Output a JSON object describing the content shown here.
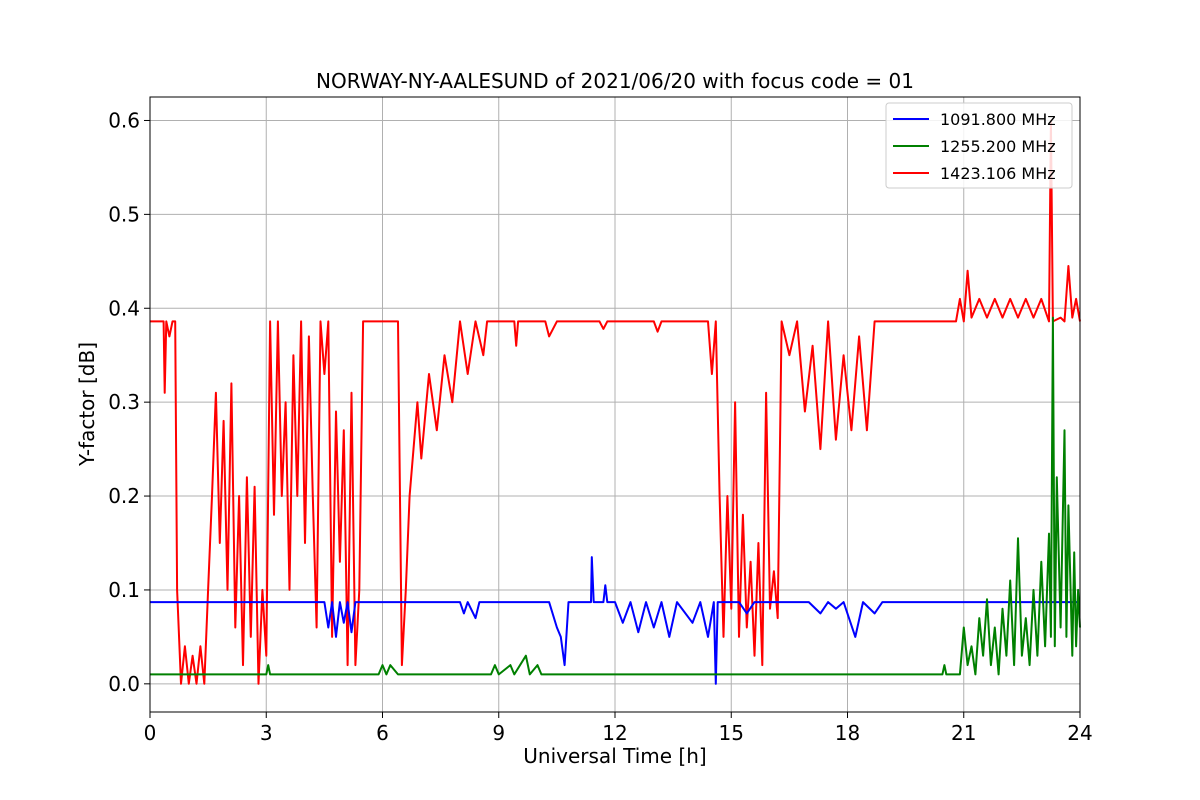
{
  "chart_data": {
    "type": "line",
    "title": "NORWAY-NY-AALESUND of 2021/06/20 with focus code = 01",
    "xlabel": "Universal Time [h]",
    "ylabel": "Y-factor [dB]",
    "xlim": [
      0,
      24
    ],
    "ylim": [
      -0.03,
      0.625
    ],
    "x_ticks": [
      0,
      3,
      6,
      9,
      12,
      15,
      18,
      21,
      24
    ],
    "y_ticks": [
      0.0,
      0.1,
      0.2,
      0.3,
      0.4,
      0.5,
      0.6
    ],
    "grid": true,
    "legend_position": "top-right",
    "series": [
      {
        "name": "1091.800 MHz",
        "color": "#0000ff",
        "baseline": 0.087,
        "points": [
          [
            0,
            0.087
          ],
          [
            4.5,
            0.087
          ],
          [
            4.6,
            0.06
          ],
          [
            4.7,
            0.087
          ],
          [
            4.8,
            0.05
          ],
          [
            4.9,
            0.087
          ],
          [
            5.0,
            0.065
          ],
          [
            5.1,
            0.087
          ],
          [
            5.2,
            0.055
          ],
          [
            5.3,
            0.087
          ],
          [
            8.0,
            0.087
          ],
          [
            8.1,
            0.075
          ],
          [
            8.2,
            0.087
          ],
          [
            8.4,
            0.07
          ],
          [
            8.5,
            0.087
          ],
          [
            10.3,
            0.087
          ],
          [
            10.5,
            0.06
          ],
          [
            10.6,
            0.05
          ],
          [
            10.7,
            0.02
          ],
          [
            10.8,
            0.087
          ],
          [
            11.38,
            0.087
          ],
          [
            11.4,
            0.135
          ],
          [
            11.45,
            0.087
          ],
          [
            11.7,
            0.087
          ],
          [
            11.75,
            0.105
          ],
          [
            11.8,
            0.087
          ],
          [
            12.0,
            0.087
          ],
          [
            12.2,
            0.065
          ],
          [
            12.4,
            0.087
          ],
          [
            12.6,
            0.055
          ],
          [
            12.8,
            0.087
          ],
          [
            13.0,
            0.06
          ],
          [
            13.2,
            0.087
          ],
          [
            13.4,
            0.05
          ],
          [
            13.6,
            0.087
          ],
          [
            14.0,
            0.065
          ],
          [
            14.2,
            0.087
          ],
          [
            14.4,
            0.05
          ],
          [
            14.55,
            0.087
          ],
          [
            14.6,
            0.0
          ],
          [
            14.65,
            0.087
          ],
          [
            15.2,
            0.087
          ],
          [
            15.4,
            0.075
          ],
          [
            15.6,
            0.087
          ],
          [
            16.0,
            0.087
          ],
          [
            17.0,
            0.087
          ],
          [
            17.3,
            0.075
          ],
          [
            17.5,
            0.087
          ],
          [
            17.7,
            0.08
          ],
          [
            17.9,
            0.087
          ],
          [
            18.2,
            0.05
          ],
          [
            18.4,
            0.087
          ],
          [
            18.7,
            0.075
          ],
          [
            18.9,
            0.087
          ],
          [
            24,
            0.087
          ]
        ]
      },
      {
        "name": "1255.200 MHz",
        "color": "#008000",
        "baseline": 0.01,
        "points": [
          [
            0,
            0.01
          ],
          [
            3.0,
            0.01
          ],
          [
            3.05,
            0.02
          ],
          [
            3.1,
            0.01
          ],
          [
            5.9,
            0.01
          ],
          [
            6.0,
            0.02
          ],
          [
            6.1,
            0.01
          ],
          [
            6.2,
            0.02
          ],
          [
            6.4,
            0.01
          ],
          [
            8.8,
            0.01
          ],
          [
            8.9,
            0.02
          ],
          [
            9.0,
            0.01
          ],
          [
            9.3,
            0.02
          ],
          [
            9.4,
            0.01
          ],
          [
            9.7,
            0.03
          ],
          [
            9.8,
            0.01
          ],
          [
            10.0,
            0.02
          ],
          [
            10.1,
            0.01
          ],
          [
            20.45,
            0.01
          ],
          [
            20.5,
            0.02
          ],
          [
            20.55,
            0.01
          ],
          [
            20.9,
            0.01
          ],
          [
            21.0,
            0.06
          ],
          [
            21.1,
            0.02
          ],
          [
            21.2,
            0.04
          ],
          [
            21.3,
            0.01
          ],
          [
            21.4,
            0.07
          ],
          [
            21.5,
            0.03
          ],
          [
            21.6,
            0.09
          ],
          [
            21.7,
            0.02
          ],
          [
            21.8,
            0.06
          ],
          [
            21.9,
            0.01
          ],
          [
            22.0,
            0.08
          ],
          [
            22.1,
            0.03
          ],
          [
            22.2,
            0.11
          ],
          [
            22.3,
            0.02
          ],
          [
            22.4,
            0.155
          ],
          [
            22.5,
            0.03
          ],
          [
            22.6,
            0.07
          ],
          [
            22.7,
            0.02
          ],
          [
            22.8,
            0.1
          ],
          [
            22.9,
            0.03
          ],
          [
            23.0,
            0.13
          ],
          [
            23.1,
            0.04
          ],
          [
            23.2,
            0.16
          ],
          [
            23.25,
            0.05
          ],
          [
            23.3,
            0.39
          ],
          [
            23.35,
            0.04
          ],
          [
            23.4,
            0.22
          ],
          [
            23.5,
            0.06
          ],
          [
            23.6,
            0.27
          ],
          [
            23.65,
            0.05
          ],
          [
            23.7,
            0.19
          ],
          [
            23.8,
            0.03
          ],
          [
            23.85,
            0.14
          ],
          [
            23.9,
            0.04
          ],
          [
            23.95,
            0.1
          ],
          [
            24,
            0.06
          ]
        ]
      },
      {
        "name": "1423.106 MHz",
        "color": "#ff0000",
        "baseline": 0.386,
        "points": [
          [
            0,
            0.386
          ],
          [
            0.35,
            0.386
          ],
          [
            0.38,
            0.31
          ],
          [
            0.42,
            0.386
          ],
          [
            0.5,
            0.37
          ],
          [
            0.58,
            0.386
          ],
          [
            0.65,
            0.386
          ],
          [
            0.7,
            0.1
          ],
          [
            0.8,
            0.0
          ],
          [
            0.9,
            0.04
          ],
          [
            1.0,
            0.0
          ],
          [
            1.1,
            0.03
          ],
          [
            1.2,
            0.0
          ],
          [
            1.3,
            0.04
          ],
          [
            1.4,
            0.0
          ],
          [
            1.5,
            0.1
          ],
          [
            1.6,
            0.2
          ],
          [
            1.7,
            0.31
          ],
          [
            1.8,
            0.15
          ],
          [
            1.9,
            0.28
          ],
          [
            2.0,
            0.1
          ],
          [
            2.1,
            0.32
          ],
          [
            2.2,
            0.06
          ],
          [
            2.3,
            0.2
          ],
          [
            2.4,
            0.02
          ],
          [
            2.5,
            0.22
          ],
          [
            2.6,
            0.05
          ],
          [
            2.7,
            0.21
          ],
          [
            2.8,
            0.0
          ],
          [
            2.9,
            0.1
          ],
          [
            3.0,
            0.03
          ],
          [
            3.1,
            0.386
          ],
          [
            3.2,
            0.18
          ],
          [
            3.3,
            0.386
          ],
          [
            3.4,
            0.2
          ],
          [
            3.5,
            0.3
          ],
          [
            3.6,
            0.1
          ],
          [
            3.7,
            0.35
          ],
          [
            3.8,
            0.2
          ],
          [
            3.9,
            0.386
          ],
          [
            4.0,
            0.15
          ],
          [
            4.1,
            0.37
          ],
          [
            4.2,
            0.2
          ],
          [
            4.3,
            0.06
          ],
          [
            4.4,
            0.386
          ],
          [
            4.5,
            0.33
          ],
          [
            4.6,
            0.386
          ],
          [
            4.7,
            0.05
          ],
          [
            4.8,
            0.29
          ],
          [
            4.9,
            0.13
          ],
          [
            5.0,
            0.27
          ],
          [
            5.1,
            0.02
          ],
          [
            5.2,
            0.31
          ],
          [
            5.3,
            0.02
          ],
          [
            5.4,
            0.1
          ],
          [
            5.5,
            0.386
          ],
          [
            6.4,
            0.386
          ],
          [
            6.5,
            0.02
          ],
          [
            6.6,
            0.1
          ],
          [
            6.7,
            0.2
          ],
          [
            6.8,
            0.25
          ],
          [
            6.9,
            0.3
          ],
          [
            7.0,
            0.24
          ],
          [
            7.2,
            0.33
          ],
          [
            7.4,
            0.27
          ],
          [
            7.6,
            0.35
          ],
          [
            7.8,
            0.3
          ],
          [
            8.0,
            0.386
          ],
          [
            8.2,
            0.33
          ],
          [
            8.4,
            0.386
          ],
          [
            8.6,
            0.35
          ],
          [
            8.7,
            0.386
          ],
          [
            9.4,
            0.386
          ],
          [
            9.45,
            0.36
          ],
          [
            9.5,
            0.386
          ],
          [
            10.2,
            0.386
          ],
          [
            10.3,
            0.37
          ],
          [
            10.5,
            0.386
          ],
          [
            11.6,
            0.386
          ],
          [
            11.7,
            0.378
          ],
          [
            11.8,
            0.386
          ],
          [
            13.0,
            0.386
          ],
          [
            13.1,
            0.375
          ],
          [
            13.2,
            0.386
          ],
          [
            14.4,
            0.386
          ],
          [
            14.5,
            0.33
          ],
          [
            14.6,
            0.386
          ],
          [
            14.7,
            0.2
          ],
          [
            14.8,
            0.05
          ],
          [
            14.9,
            0.2
          ],
          [
            15.0,
            0.08
          ],
          [
            15.1,
            0.3
          ],
          [
            15.2,
            0.05
          ],
          [
            15.3,
            0.18
          ],
          [
            15.4,
            0.06
          ],
          [
            15.5,
            0.13
          ],
          [
            15.6,
            0.03
          ],
          [
            15.7,
            0.15
          ],
          [
            15.8,
            0.02
          ],
          [
            15.9,
            0.31
          ],
          [
            16.0,
            0.08
          ],
          [
            16.1,
            0.12
          ],
          [
            16.2,
            0.07
          ],
          [
            16.3,
            0.386
          ],
          [
            16.5,
            0.35
          ],
          [
            16.7,
            0.386
          ],
          [
            16.9,
            0.29
          ],
          [
            17.1,
            0.36
          ],
          [
            17.3,
            0.25
          ],
          [
            17.5,
            0.386
          ],
          [
            17.7,
            0.26
          ],
          [
            17.9,
            0.35
          ],
          [
            18.1,
            0.27
          ],
          [
            18.3,
            0.37
          ],
          [
            18.5,
            0.27
          ],
          [
            18.7,
            0.386
          ],
          [
            19.0,
            0.386
          ],
          [
            20.8,
            0.386
          ],
          [
            20.9,
            0.41
          ],
          [
            21.0,
            0.386
          ],
          [
            21.1,
            0.44
          ],
          [
            21.2,
            0.39
          ],
          [
            21.4,
            0.41
          ],
          [
            21.6,
            0.39
          ],
          [
            21.8,
            0.41
          ],
          [
            22.0,
            0.39
          ],
          [
            22.2,
            0.41
          ],
          [
            22.4,
            0.39
          ],
          [
            22.6,
            0.41
          ],
          [
            22.8,
            0.39
          ],
          [
            23.0,
            0.41
          ],
          [
            23.2,
            0.386
          ],
          [
            23.25,
            0.6
          ],
          [
            23.3,
            0.386
          ],
          [
            23.5,
            0.39
          ],
          [
            23.6,
            0.386
          ],
          [
            23.7,
            0.445
          ],
          [
            23.8,
            0.39
          ],
          [
            23.9,
            0.41
          ],
          [
            24,
            0.386
          ]
        ]
      }
    ]
  }
}
